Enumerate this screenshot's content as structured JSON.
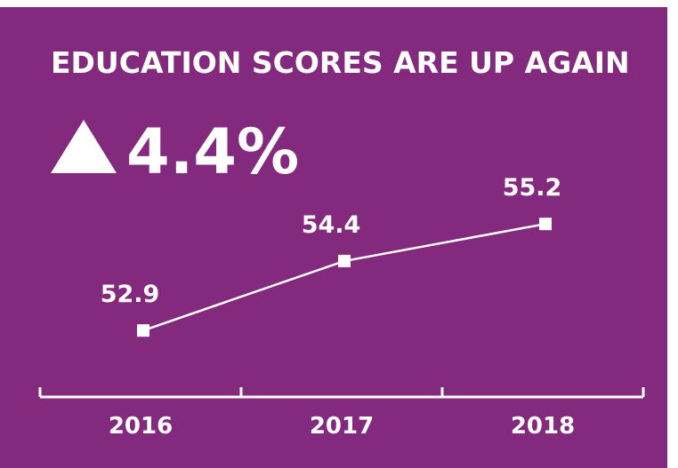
{
  "chart_data": {
    "type": "line",
    "title": "EDUCATION SCORES ARE UP AGAIN",
    "annotation": "4.4%",
    "categories": [
      "2016",
      "2017",
      "2018"
    ],
    "values": [
      52.9,
      54.4,
      55.2
    ],
    "color": "#ffffff",
    "ylim": [
      51.6,
      56.2
    ]
  }
}
